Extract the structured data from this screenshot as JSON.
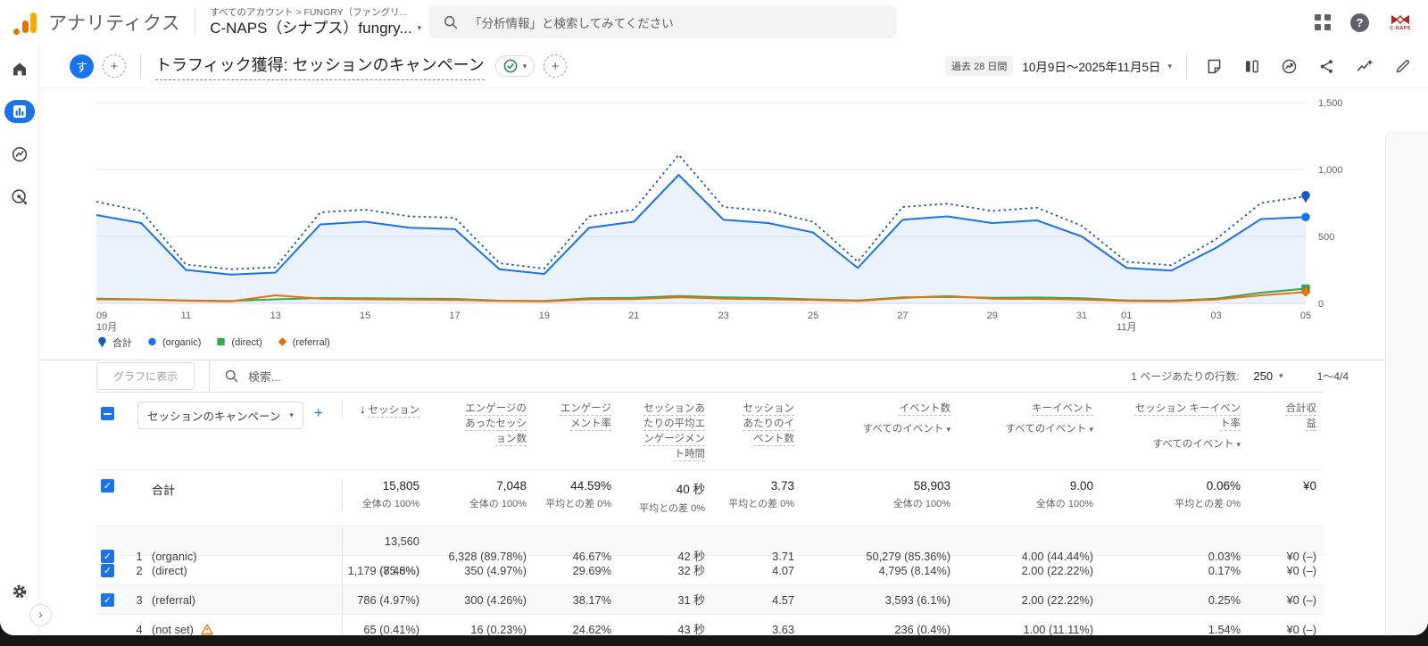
{
  "app_bar": {
    "product_name": "アナリティクス",
    "breadcrumb_top": "すべてのアカウント > FUNGRY（ファングリ...",
    "breadcrumb_main": "C-NAPS（シナプス）fungry...",
    "search_placeholder": "「分析情報」と検索してみてください",
    "avatar_org": "C-NAPS",
    "icons": [
      "apps-grid",
      "help",
      "account-avatar"
    ]
  },
  "nav": {
    "items": [
      {
        "icon": "home"
      },
      {
        "icon": "reports",
        "active": true
      },
      {
        "icon": "explore"
      },
      {
        "icon": "advertising"
      }
    ],
    "bottom_icon": "admin-gear"
  },
  "report_header": {
    "segment_letter": "す",
    "title": "トラフィック獲得: セッションのキャンペーン",
    "date_range_chip": "過去 28 日間",
    "date_range": "10月9日〜2025年11月5日",
    "action_icons": [
      "note",
      "comparison",
      "intelligence",
      "share",
      "sparkline-insights",
      "edit"
    ]
  },
  "chart_data": {
    "type": "line",
    "title": "",
    "xlabel": "",
    "ylabel": "",
    "ylim": [
      0,
      1500
    ],
    "ytick_values": [
      0,
      500,
      1000,
      1500
    ],
    "grid": true,
    "legend_position": "bottom-left",
    "x": [
      "10/09",
      "10/10",
      "10/11",
      "10/12",
      "10/13",
      "10/14",
      "10/15",
      "10/16",
      "10/17",
      "10/18",
      "10/19",
      "10/20",
      "10/21",
      "10/22",
      "10/23",
      "10/24",
      "10/25",
      "10/26",
      "10/27",
      "10/28",
      "10/29",
      "10/30",
      "10/31",
      "11/01",
      "11/02",
      "11/03",
      "11/04",
      "11/05"
    ],
    "ticks": [
      {
        "i": 0,
        "label": "09",
        "sub": "10月"
      },
      {
        "i": 2,
        "label": "11"
      },
      {
        "i": 4,
        "label": "13"
      },
      {
        "i": 6,
        "label": "15"
      },
      {
        "i": 8,
        "label": "17"
      },
      {
        "i": 10,
        "label": "19"
      },
      {
        "i": 12,
        "label": "21"
      },
      {
        "i": 14,
        "label": "23"
      },
      {
        "i": 16,
        "label": "25"
      },
      {
        "i": 18,
        "label": "27"
      },
      {
        "i": 20,
        "label": "29"
      },
      {
        "i": 22,
        "label": "31"
      },
      {
        "i": 23,
        "label": "01",
        "sub": "11月"
      },
      {
        "i": 25,
        "label": "03"
      },
      {
        "i": 27,
        "label": "05"
      }
    ],
    "series": [
      {
        "name": "合計",
        "color": "#185abc",
        "style": "dotted",
        "marker": "pin",
        "values": [
          760,
          690,
          290,
          255,
          270,
          680,
          700,
          650,
          640,
          300,
          260,
          650,
          700,
          1110,
          720,
          690,
          610,
          310,
          720,
          745,
          690,
          715,
          580,
          310,
          285,
          480,
          750,
          800
        ]
      },
      {
        "name": "(organic)",
        "color": "#1a73e8",
        "style": "solid",
        "marker": "circle",
        "area": true,
        "values": [
          660,
          600,
          250,
          215,
          230,
          590,
          610,
          565,
          555,
          255,
          220,
          565,
          610,
          960,
          625,
          600,
          530,
          265,
          625,
          650,
          600,
          620,
          500,
          265,
          245,
          415,
          630,
          645
        ]
      },
      {
        "name": "(direct)",
        "color": "#34a853",
        "style": "solid",
        "marker": "square",
        "values": [
          35,
          30,
          22,
          18,
          30,
          40,
          38,
          35,
          33,
          20,
          18,
          38,
          42,
          55,
          45,
          40,
          30,
          22,
          45,
          48,
          42,
          44,
          38,
          22,
          20,
          35,
          80,
          110
        ]
      },
      {
        "name": "(referral)",
        "color": "#e8710a",
        "style": "solid",
        "marker": "diamond",
        "values": [
          30,
          28,
          20,
          15,
          60,
          35,
          30,
          28,
          26,
          18,
          15,
          30,
          32,
          45,
          35,
          30,
          25,
          18,
          40,
          55,
          35,
          33,
          28,
          18,
          16,
          28,
          60,
          85
        ]
      }
    ]
  },
  "table": {
    "toolbar": {
      "chart_button": "グラフに表示",
      "search_placeholder": "検索...",
      "rows_per_page_label": "1 ページあたりの行数:",
      "rows_per_page": "250",
      "range": "1〜4/4"
    },
    "dimension_dropdown": "セッションのキャンペーン",
    "columns": [
      {
        "label": "セッション",
        "sorted": true
      },
      {
        "label": "エンゲージのあったセッション数"
      },
      {
        "label": "エンゲージメント率"
      },
      {
        "label": "セッションあたりの平均エンゲージメント時間"
      },
      {
        "label": "セッションあたりのイベント数"
      },
      {
        "label": "イベント数",
        "filter": "すべてのイベント"
      },
      {
        "label": "キーイベント",
        "filter": "すべてのイベント"
      },
      {
        "label": "セッション キーイベント率",
        "filter": "すべてのイベント"
      },
      {
        "label": "合計収益"
      }
    ],
    "totals": {
      "label": "合計",
      "cells": [
        {
          "v": "15,805",
          "sub": "全体の 100%"
        },
        {
          "v": "7,048",
          "sub": "全体の 100%"
        },
        {
          "v": "44.59%",
          "sub": "平均との差 0%"
        },
        {
          "v": "40 秒",
          "sub": "平均との差 0%"
        },
        {
          "v": "3.73",
          "sub": "平均との差 0%"
        },
        {
          "v": "58,903",
          "sub": "全体の 100%"
        },
        {
          "v": "9.00",
          "sub": "全体の 100%"
        },
        {
          "v": "0.06%",
          "sub": "平均との差 0%"
        },
        {
          "v": "¥0"
        }
      ]
    },
    "rows": [
      {
        "n": "1",
        "name": "(organic)",
        "checked": true,
        "warning": false,
        "cells": [
          "13,560 (85.8%)",
          "6,328 (89.78%)",
          "46.67%",
          "42 秒",
          "3.71",
          "50,279 (85.36%)",
          "4.00 (44.44%)",
          "0.03%",
          "¥0 (–)"
        ]
      },
      {
        "n": "2",
        "name": "(direct)",
        "checked": true,
        "warning": false,
        "cells": [
          "1,179 (7.46%)",
          "350 (4.97%)",
          "29.69%",
          "32 秒",
          "4.07",
          "4,795 (8.14%)",
          "2.00 (22.22%)",
          "0.17%",
          "¥0 (–)"
        ]
      },
      {
        "n": "3",
        "name": "(referral)",
        "checked": true,
        "warning": false,
        "cells": [
          "786 (4.97%)",
          "300 (4.26%)",
          "38.17%",
          "31 秒",
          "4.57",
          "3,593 (6.1%)",
          "2.00 (22.22%)",
          "0.25%",
          "¥0 (–)"
        ]
      },
      {
        "n": "4",
        "name": "(not set)",
        "checked": false,
        "warning": true,
        "cells": [
          "65 (0.41%)",
          "16 (0.23%)",
          "24.62%",
          "43 秒",
          "3.63",
          "236 (0.4%)",
          "1.00 (11.11%)",
          "1.54%",
          "¥0 (–)"
        ]
      }
    ]
  },
  "colors": {
    "accent": "#1a73e8",
    "total_line": "#185abc",
    "organic": "#1a73e8",
    "direct": "#34a853",
    "referral": "#e8710a",
    "warning": "#e8710a"
  }
}
